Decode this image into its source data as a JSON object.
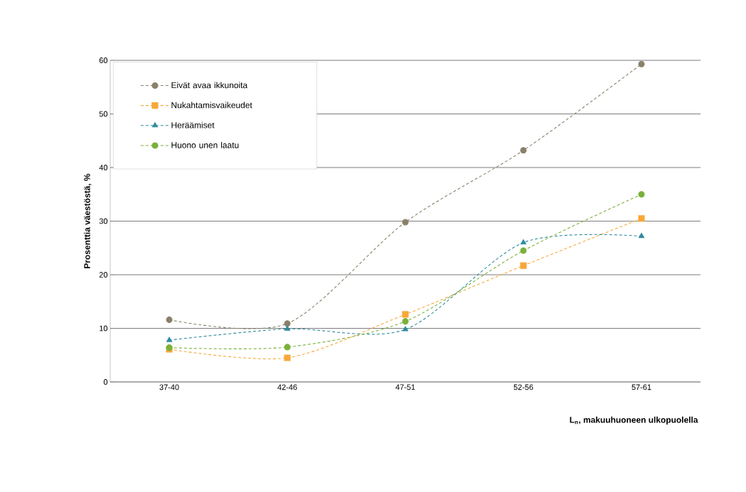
{
  "chart_data": {
    "type": "line",
    "xlabel": "L$_{n}$, makuuhuoneen ulkopuolella",
    "ylabel": "Prosenttia väestöstä, %",
    "categories": [
      "37-40",
      "42-46",
      "47-51",
      "52-56",
      "57-61"
    ],
    "series": [
      {
        "name": "Eivät avaa ikkunoita",
        "color": "#8a806a",
        "marker": "circle",
        "values": [
          11.6,
          10.9,
          29.8,
          43.2,
          59.3
        ]
      },
      {
        "name": "Nukahtamisvaikeudet",
        "color": "#f7a838",
        "marker": "square",
        "values": [
          6.1,
          4.5,
          12.6,
          21.7,
          30.5
        ]
      },
      {
        "name": "Heräämiset",
        "color": "#2f8b9e",
        "marker": "triangle",
        "values": [
          7.8,
          9.9,
          9.8,
          26.0,
          27.2
        ]
      },
      {
        "name": "Huono unen laatu",
        "color": "#7ab03a",
        "marker": "circle",
        "values": [
          6.4,
          6.5,
          11.3,
          24.5,
          35.0
        ]
      }
    ],
    "ylim": [
      0,
      60
    ],
    "yticks": [
      0,
      10,
      20,
      30,
      40,
      50,
      60
    ],
    "grid": "y",
    "legend": "top left",
    "line_style": "dashed"
  }
}
